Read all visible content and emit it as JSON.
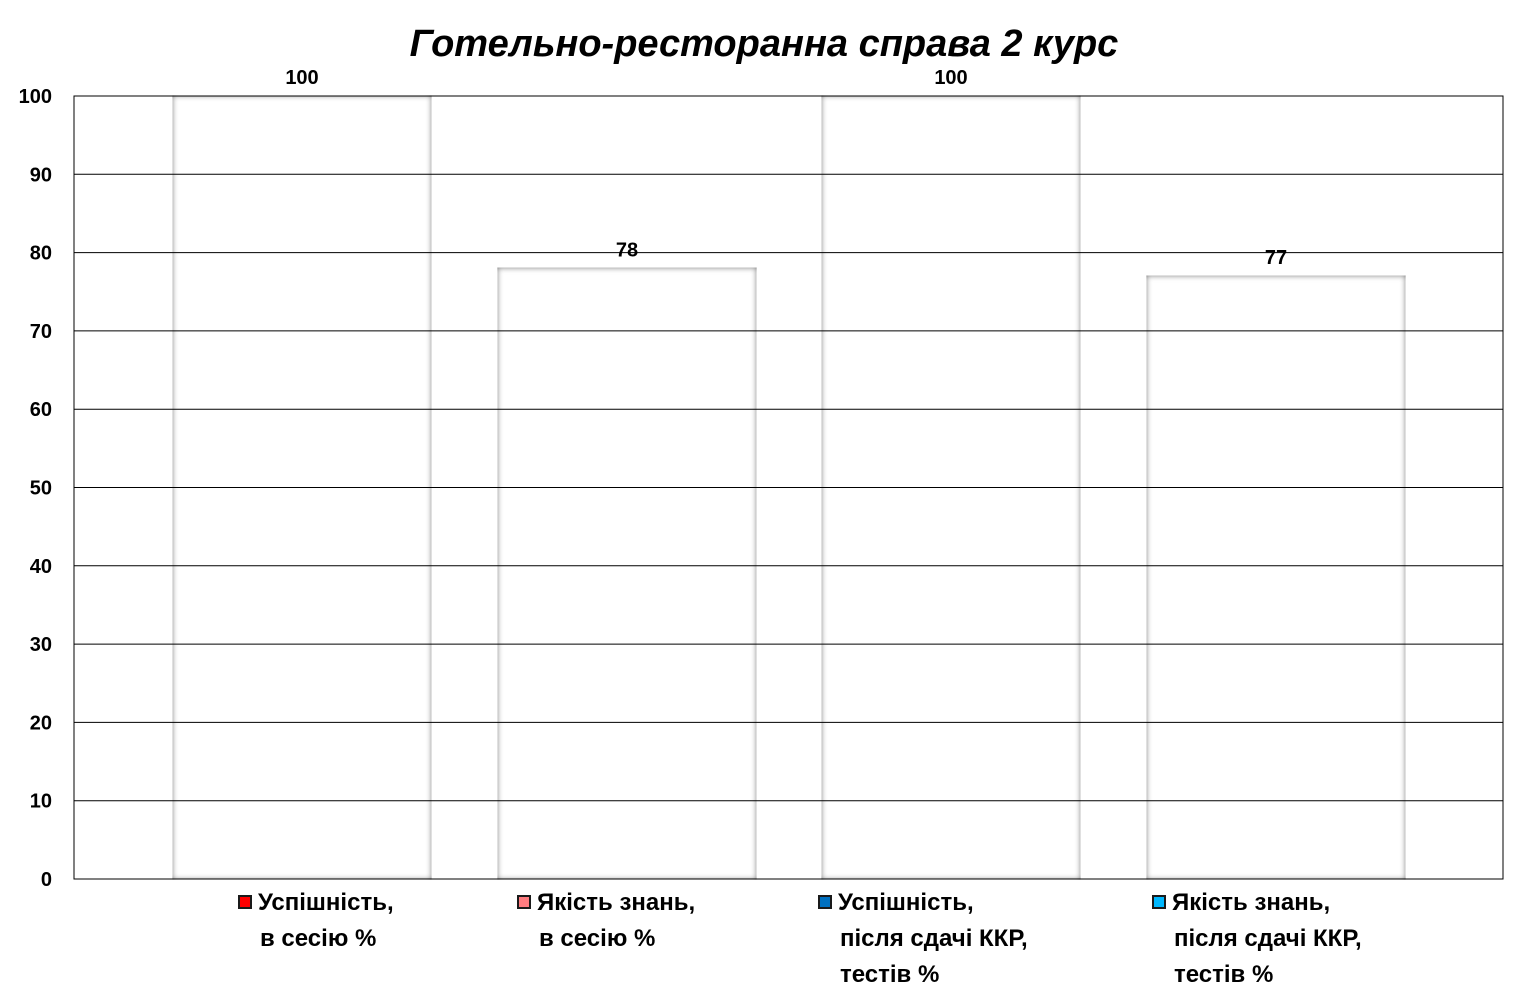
{
  "chart_data": {
    "type": "bar",
    "title": "Готельно-ресторанна справа 2 курс",
    "xlabel": "",
    "ylabel": "",
    "ylim": [
      0,
      100
    ],
    "yticks": [
      0,
      10,
      20,
      30,
      40,
      50,
      60,
      70,
      80,
      90,
      100
    ],
    "grid": true,
    "legend_position": "bottom",
    "series": [
      {
        "name_lines": [
          "Успішність,",
          "в сесію %"
        ],
        "value": 100,
        "label": "100",
        "color": "#FF0000"
      },
      {
        "name_lines": [
          "Якість знань,",
          "в сесію %"
        ],
        "value": 78,
        "label": "78",
        "color": "#FF7C80"
      },
      {
        "name_lines": [
          "Успішність,",
          "після сдачі ККР,",
          "тестів %"
        ],
        "value": 100,
        "label": "100",
        "color": "#0070C0"
      },
      {
        "name_lines": [
          "Якість знань,",
          "після сдачі ККР,",
          "тестів %"
        ],
        "value": 77,
        "label": "77",
        "color": "#00B8FF"
      }
    ]
  }
}
